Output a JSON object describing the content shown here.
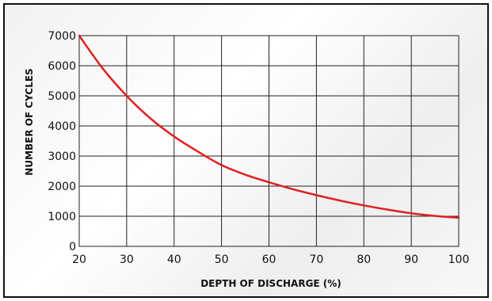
{
  "chart_data": {
    "type": "line",
    "title": "",
    "xlabel": "DEPTH OF DISCHARGE (%)",
    "ylabel": "NUMBER OF CYCLES",
    "xlim": [
      20,
      100
    ],
    "ylim": [
      0,
      7000
    ],
    "x_ticks": [
      20,
      30,
      40,
      50,
      60,
      70,
      80,
      90,
      100
    ],
    "y_ticks": [
      0,
      1000,
      2000,
      3000,
      4000,
      5000,
      6000,
      7000
    ],
    "grid": true,
    "series": [
      {
        "color": "#e02020",
        "x": [
          20,
          25,
          30,
          35,
          40,
          45,
          50,
          55,
          60,
          65,
          70,
          75,
          80,
          85,
          90,
          95,
          100
        ],
        "y": [
          7000,
          5900,
          5000,
          4250,
          3650,
          3150,
          2700,
          2380,
          2130,
          1900,
          1700,
          1520,
          1360,
          1220,
          1100,
          1010,
          950
        ]
      }
    ]
  }
}
